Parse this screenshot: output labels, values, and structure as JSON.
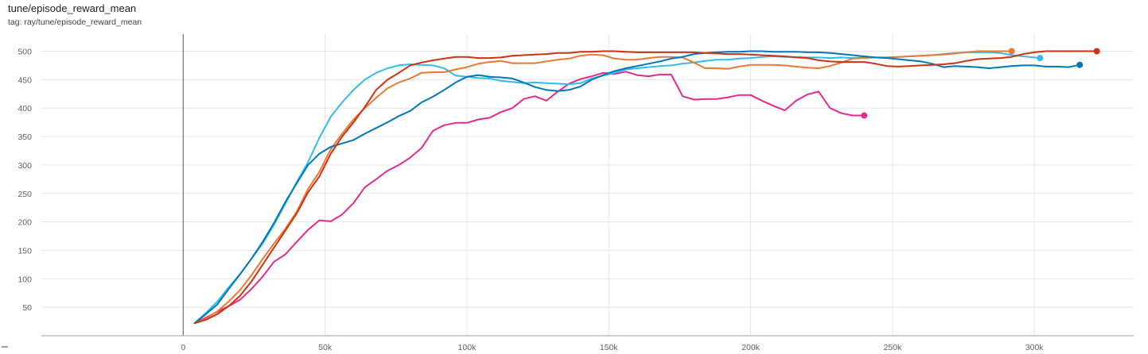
{
  "header": {
    "title": "tune/episode_reward_mean",
    "tag": "tag: ray/tune/episode_reward_mean"
  },
  "chart_data": {
    "type": "line",
    "xlim": [
      -50000,
      335000
    ],
    "ylim": [
      0,
      530
    ],
    "x_ticks": [
      0,
      50000,
      100000,
      150000,
      200000,
      250000,
      300000
    ],
    "x_tick_labels": [
      "0",
      "50k",
      "100k",
      "150k",
      "200k",
      "250k",
      "300k"
    ],
    "y_ticks": [
      50,
      100,
      150,
      200,
      250,
      300,
      350,
      400,
      450,
      500
    ],
    "grid": true,
    "legend": "none",
    "series": [
      {
        "color": "#e7298a",
        "x": [
          4000,
          8000,
          12000,
          16000,
          20000,
          24000,
          28000,
          32000,
          36000,
          40000,
          44000,
          48000,
          52000,
          56000,
          60000,
          64000,
          68000,
          72000,
          76000,
          80000,
          84000,
          88000,
          92000,
          96000,
          100000,
          104000,
          108000,
          112000,
          116000,
          120000,
          124000,
          128000,
          132000,
          136000,
          140000,
          144000,
          148000,
          152000,
          156000,
          160000,
          164000,
          168000,
          172000,
          176000,
          180000,
          184000,
          188000,
          192000,
          196000,
          200000,
          204000,
          208000,
          212000,
          216000,
          220000,
          224000,
          228000,
          232000,
          236000,
          240000
        ],
        "y": [
          22,
          32,
          42,
          52,
          63,
          82,
          104,
          130,
          143,
          165,
          186,
          203,
          201,
          213,
          233,
          261,
          275,
          290,
          300,
          313,
          330,
          360,
          370,
          374,
          374,
          380,
          383,
          393,
          400,
          416,
          421,
          413,
          429,
          443,
          451,
          456,
          462,
          460,
          464,
          458,
          456,
          459,
          459,
          421,
          415,
          416,
          416,
          419,
          423,
          423,
          413,
          404,
          396,
          413,
          424,
          429,
          400,
          391,
          387,
          387
        ],
        "end_marker": true
      },
      {
        "color": "#33bbee",
        "x": [
          4000,
          8000,
          12000,
          16000,
          20000,
          24000,
          28000,
          32000,
          36000,
          40000,
          44000,
          48000,
          52000,
          56000,
          60000,
          64000,
          68000,
          72000,
          76000,
          80000,
          84000,
          88000,
          92000,
          96000,
          100000,
          104000,
          108000,
          112000,
          116000,
          120000,
          124000,
          128000,
          132000,
          136000,
          140000,
          144000,
          148000,
          152000,
          156000,
          160000,
          164000,
          168000,
          172000,
          176000,
          180000,
          184000,
          188000,
          192000,
          196000,
          200000,
          204000,
          208000,
          212000,
          216000,
          220000,
          224000,
          228000,
          232000,
          236000,
          240000,
          244000,
          248000,
          252000,
          256000,
          260000,
          264000,
          268000,
          272000,
          276000,
          280000,
          284000,
          288000,
          292000,
          296000,
          300000,
          302000
        ],
        "y": [
          22,
          40,
          60,
          85,
          108,
          135,
          162,
          195,
          232,
          270,
          305,
          348,
          385,
          410,
          432,
          450,
          462,
          470,
          475,
          477,
          476,
          475,
          470,
          457,
          455,
          453,
          452,
          448,
          446,
          444,
          445,
          444,
          443,
          442,
          444,
          452,
          457,
          462,
          468,
          470,
          472,
          474,
          475,
          478,
          480,
          483,
          485,
          485,
          487,
          488,
          490,
          491,
          490,
          490,
          489,
          489,
          488,
          489,
          488,
          489,
          489,
          489,
          490,
          491,
          492,
          493,
          495,
          497,
          498,
          498,
          498,
          497,
          493,
          491,
          489,
          488
        ],
        "end_marker": true
      },
      {
        "color": "#ee7733",
        "x": [
          4000,
          8000,
          12000,
          16000,
          20000,
          24000,
          28000,
          32000,
          36000,
          40000,
          44000,
          48000,
          52000,
          56000,
          60000,
          64000,
          68000,
          72000,
          76000,
          80000,
          84000,
          88000,
          92000,
          96000,
          100000,
          104000,
          108000,
          112000,
          116000,
          120000,
          124000,
          128000,
          132000,
          136000,
          140000,
          144000,
          148000,
          152000,
          156000,
          160000,
          164000,
          168000,
          172000,
          176000,
          180000,
          184000,
          188000,
          192000,
          196000,
          200000,
          204000,
          208000,
          212000,
          216000,
          220000,
          224000,
          228000,
          232000,
          236000,
          240000,
          244000,
          248000,
          252000,
          256000,
          260000,
          264000,
          268000,
          272000,
          276000,
          280000,
          284000,
          288000,
          292000
        ],
        "y": [
          22,
          30,
          43,
          60,
          80,
          106,
          135,
          162,
          188,
          218,
          258,
          288,
          328,
          355,
          380,
          400,
          418,
          435,
          445,
          452,
          462,
          463,
          463,
          468,
          472,
          478,
          481,
          483,
          479,
          479,
          479,
          482,
          485,
          487,
          492,
          494,
          493,
          487,
          485,
          485,
          488,
          490,
          490,
          489,
          480,
          470,
          470,
          469,
          473,
          476,
          476,
          476,
          475,
          473,
          471,
          470,
          474,
          480,
          487,
          488,
          489,
          489,
          490,
          491,
          492,
          493,
          494,
          496,
          498,
          500,
          500,
          500,
          500
        ],
        "end_marker": true
      },
      {
        "color": "#0077bb",
        "x": [
          4000,
          8000,
          12000,
          16000,
          20000,
          24000,
          28000,
          32000,
          36000,
          40000,
          44000,
          48000,
          52000,
          56000,
          60000,
          64000,
          68000,
          72000,
          76000,
          80000,
          84000,
          88000,
          92000,
          96000,
          100000,
          104000,
          108000,
          112000,
          116000,
          120000,
          124000,
          128000,
          132000,
          136000,
          140000,
          144000,
          148000,
          152000,
          156000,
          160000,
          164000,
          168000,
          172000,
          176000,
          180000,
          184000,
          188000,
          192000,
          196000,
          200000,
          204000,
          208000,
          212000,
          216000,
          220000,
          224000,
          228000,
          232000,
          236000,
          240000,
          244000,
          248000,
          252000,
          256000,
          260000,
          264000,
          268000,
          272000,
          276000,
          280000,
          284000,
          288000,
          292000,
          296000,
          300000,
          304000,
          308000,
          312000,
          316000
        ],
        "y": [
          22,
          38,
          55,
          82,
          108,
          135,
          165,
          198,
          235,
          268,
          300,
          320,
          332,
          338,
          344,
          355,
          365,
          375,
          386,
          395,
          410,
          420,
          432,
          445,
          455,
          458,
          455,
          454,
          452,
          445,
          437,
          432,
          430,
          432,
          438,
          450,
          458,
          465,
          470,
          474,
          478,
          482,
          487,
          490,
          495,
          497,
          498,
          499,
          499,
          500,
          500,
          499,
          499,
          499,
          498,
          498,
          497,
          495,
          493,
          491,
          489,
          488,
          486,
          484,
          482,
          478,
          472,
          474,
          473,
          472,
          470,
          472,
          474,
          475,
          475,
          473,
          473,
          472,
          476
        ],
        "end_marker": true
      },
      {
        "color": "#cc3311",
        "x": [
          4000,
          8000,
          12000,
          16000,
          20000,
          24000,
          28000,
          32000,
          36000,
          40000,
          44000,
          48000,
          52000,
          56000,
          60000,
          64000,
          68000,
          72000,
          76000,
          80000,
          84000,
          88000,
          92000,
          96000,
          100000,
          104000,
          108000,
          112000,
          116000,
          120000,
          124000,
          128000,
          132000,
          136000,
          140000,
          144000,
          148000,
          152000,
          156000,
          160000,
          164000,
          168000,
          172000,
          176000,
          180000,
          184000,
          188000,
          192000,
          196000,
          200000,
          204000,
          208000,
          212000,
          216000,
          220000,
          224000,
          228000,
          232000,
          236000,
          240000,
          244000,
          248000,
          252000,
          256000,
          260000,
          264000,
          268000,
          272000,
          276000,
          280000,
          284000,
          288000,
          292000,
          296000,
          300000,
          304000,
          308000,
          312000,
          316000,
          320000,
          322000
        ],
        "y": [
          22,
          28,
          38,
          52,
          70,
          95,
          125,
          155,
          185,
          215,
          252,
          280,
          320,
          350,
          375,
          402,
          432,
          450,
          462,
          475,
          480,
          484,
          487,
          490,
          490,
          488,
          488,
          489,
          492,
          493,
          494,
          495,
          497,
          497,
          499,
          499,
          500,
          500,
          499,
          498,
          498,
          498,
          498,
          498,
          498,
          497,
          496,
          495,
          495,
          494,
          493,
          492,
          491,
          489,
          488,
          484,
          482,
          481,
          481,
          481,
          478,
          474,
          473,
          474,
          475,
          476,
          477,
          479,
          483,
          486,
          487,
          488,
          490,
          495,
          498,
          500,
          500,
          500,
          500,
          500,
          500
        ],
        "end_marker": true
      }
    ]
  }
}
